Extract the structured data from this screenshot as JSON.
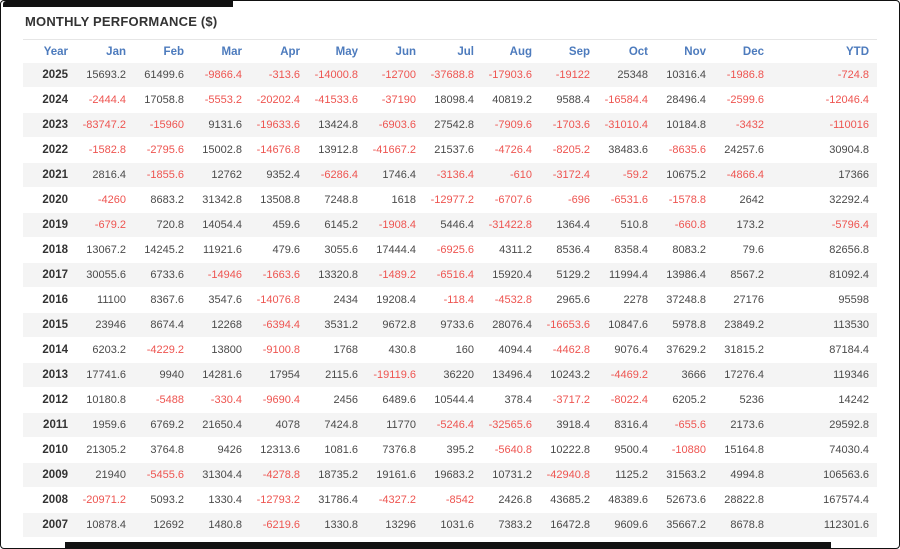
{
  "title": "MONTHLY PERFORMANCE ($)",
  "colors": {
    "header_text": "#4d7bbd",
    "negative_value": "#ee5450",
    "positive_value": "#4a4a4a",
    "title_text": "#333333",
    "alt_row_bg": "#f4f4f4"
  },
  "chart_data": {
    "type": "table",
    "title": "MONTHLY PERFORMANCE ($)",
    "columns": [
      "Year",
      "Jan",
      "Feb",
      "Mar",
      "Apr",
      "May",
      "Jun",
      "Jul",
      "Aug",
      "Sep",
      "Oct",
      "Nov",
      "Dec",
      "YTD"
    ],
    "rows": [
      {
        "year": "2025",
        "values": [
          "15693.2",
          "61499.6",
          "-9866.4",
          "-313.6",
          "-14000.8",
          "-12700",
          "-37688.8",
          "-17903.6",
          "-19122",
          "25348",
          "10316.4",
          "-1986.8",
          "-724.8"
        ]
      },
      {
        "year": "2024",
        "values": [
          "-2444.4",
          "17058.8",
          "-5553.2",
          "-20202.4",
          "-41533.6",
          "-37190",
          "18098.4",
          "40819.2",
          "9588.4",
          "-16584.4",
          "28496.4",
          "-2599.6",
          "-12046.4"
        ]
      },
      {
        "year": "2023",
        "values": [
          "-83747.2",
          "-15960",
          "9131.6",
          "-19633.6",
          "13424.8",
          "-6903.6",
          "27542.8",
          "-7909.6",
          "-1703.6",
          "-31010.4",
          "10184.8",
          "-3432",
          "-110016"
        ]
      },
      {
        "year": "2022",
        "values": [
          "-1582.8",
          "-2795.6",
          "15002.8",
          "-14676.8",
          "13912.8",
          "-41667.2",
          "21537.6",
          "-4726.4",
          "-8205.2",
          "38483.6",
          "-8635.6",
          "24257.6",
          "30904.8"
        ]
      },
      {
        "year": "2021",
        "values": [
          "2816.4",
          "-1855.6",
          "12762",
          "9352.4",
          "-6286.4",
          "1746.4",
          "-3136.4",
          "-610",
          "-3172.4",
          "-59.2",
          "10675.2",
          "-4866.4",
          "17366"
        ]
      },
      {
        "year": "2020",
        "values": [
          "-4260",
          "8683.2",
          "31342.8",
          "13508.8",
          "7248.8",
          "1618",
          "-12977.2",
          "-6707.6",
          "-696",
          "-6531.6",
          "-1578.8",
          "2642",
          "32292.4"
        ]
      },
      {
        "year": "2019",
        "values": [
          "-679.2",
          "720.8",
          "14054.4",
          "459.6",
          "6145.2",
          "-1908.4",
          "5446.4",
          "-31422.8",
          "1364.4",
          "510.8",
          "-660.8",
          "173.2",
          "-5796.4"
        ]
      },
      {
        "year": "2018",
        "values": [
          "13067.2",
          "14245.2",
          "11921.6",
          "479.6",
          "3055.6",
          "17444.4",
          "-6925.6",
          "4311.2",
          "8536.4",
          "8358.4",
          "8083.2",
          "79.6",
          "82656.8"
        ]
      },
      {
        "year": "2017",
        "values": [
          "30055.6",
          "6733.6",
          "-14946",
          "-1663.6",
          "13320.8",
          "-1489.2",
          "-6516.4",
          "15920.4",
          "5129.2",
          "11994.4",
          "13986.4",
          "8567.2",
          "81092.4"
        ]
      },
      {
        "year": "2016",
        "values": [
          "11100",
          "8367.6",
          "3547.6",
          "-14076.8",
          "2434",
          "19208.4",
          "-118.4",
          "-4532.8",
          "2965.6",
          "2278",
          "37248.8",
          "27176",
          "95598"
        ]
      },
      {
        "year": "2015",
        "values": [
          "23946",
          "8674.4",
          "12268",
          "-6394.4",
          "3531.2",
          "9672.8",
          "9733.6",
          "28076.4",
          "-16653.6",
          "10847.6",
          "5978.8",
          "23849.2",
          "113530"
        ]
      },
      {
        "year": "2014",
        "values": [
          "6203.2",
          "-4229.2",
          "13800",
          "-9100.8",
          "1768",
          "430.8",
          "160",
          "4094.4",
          "-4462.8",
          "9076.4",
          "37629.2",
          "31815.2",
          "87184.4"
        ]
      },
      {
        "year": "2013",
        "values": [
          "17741.6",
          "9940",
          "14281.6",
          "17954",
          "2115.6",
          "-19119.6",
          "36220",
          "13496.4",
          "10243.2",
          "-4469.2",
          "3666",
          "17276.4",
          "119346"
        ]
      },
      {
        "year": "2012",
        "values": [
          "10180.8",
          "-5488",
          "-330.4",
          "-9690.4",
          "2456",
          "6489.6",
          "10544.4",
          "378.4",
          "-3717.2",
          "-8022.4",
          "6205.2",
          "5236",
          "14242"
        ]
      },
      {
        "year": "2011",
        "values": [
          "1959.6",
          "6769.2",
          "21650.4",
          "4078",
          "7424.8",
          "11770",
          "-5246.4",
          "-32565.6",
          "3918.4",
          "8316.4",
          "-655.6",
          "2173.6",
          "29592.8"
        ]
      },
      {
        "year": "2010",
        "values": [
          "21305.2",
          "3764.8",
          "9426",
          "12313.6",
          "1081.6",
          "7376.8",
          "395.2",
          "-5640.8",
          "10222.8",
          "9500.4",
          "-10880",
          "15164.8",
          "74030.4"
        ]
      },
      {
        "year": "2009",
        "values": [
          "21940",
          "-5455.6",
          "31304.4",
          "-4278.8",
          "18735.2",
          "19161.6",
          "19683.2",
          "10731.2",
          "-42940.8",
          "1125.2",
          "31563.2",
          "4994.8",
          "106563.6"
        ]
      },
      {
        "year": "2008",
        "values": [
          "-20971.2",
          "5093.2",
          "1330.4",
          "-12793.2",
          "31786.4",
          "-4327.2",
          "-8542",
          "2426.8",
          "43685.2",
          "48389.6",
          "52673.6",
          "28822.8",
          "167574.4"
        ]
      },
      {
        "year": "2007",
        "values": [
          "10878.4",
          "12692",
          "1480.8",
          "-6219.6",
          "1330.8",
          "13296",
          "1031.6",
          "7383.2",
          "16472.8",
          "9609.6",
          "35667.2",
          "8678.8",
          "112301.6"
        ]
      }
    ]
  }
}
